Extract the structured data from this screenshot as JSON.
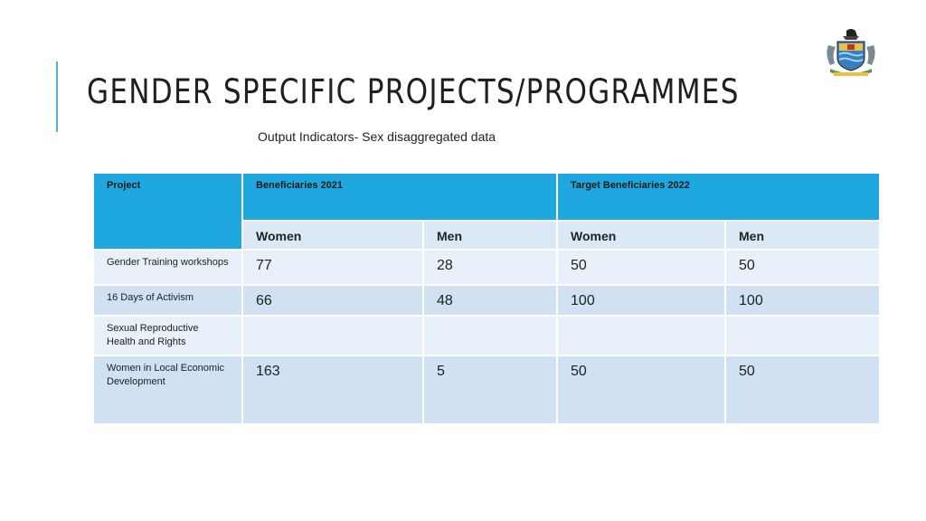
{
  "slide": {
    "title": "GENDER SPECIFIC PROJECTS/PROGRAMMES",
    "subtitle": "Output Indicators- Sex disaggregated data"
  },
  "table": {
    "headers": {
      "project": "Project",
      "group_2021": "Beneficiaries 2021",
      "group_2022": "Target Beneficiaries 2022"
    },
    "subheaders": [
      "Women",
      "Men",
      "Women",
      "Men"
    ],
    "rows": [
      {
        "project": "Gender Training workshops",
        "w2021": "77",
        "m2021": "28",
        "w2022": "50",
        "m2022": "50"
      },
      {
        "project": "16 Days of Activism",
        "w2021": "66",
        "m2021": "48",
        "w2022": "100",
        "m2022": "100"
      },
      {
        "project": "Sexual Reproductive Health and Rights",
        "w2021": "",
        "m2021": "",
        "w2022": "",
        "m2022": ""
      },
      {
        "project": "Women in Local Economic Development",
        "w2021": "163",
        "m2021": "5",
        "w2022": "50",
        "m2022": "50"
      }
    ]
  },
  "colors": {
    "header": "#1fa8df",
    "row_light": "#e8f0f9",
    "row_dark": "#cfe1f2",
    "accent": "#4ab3d8"
  }
}
